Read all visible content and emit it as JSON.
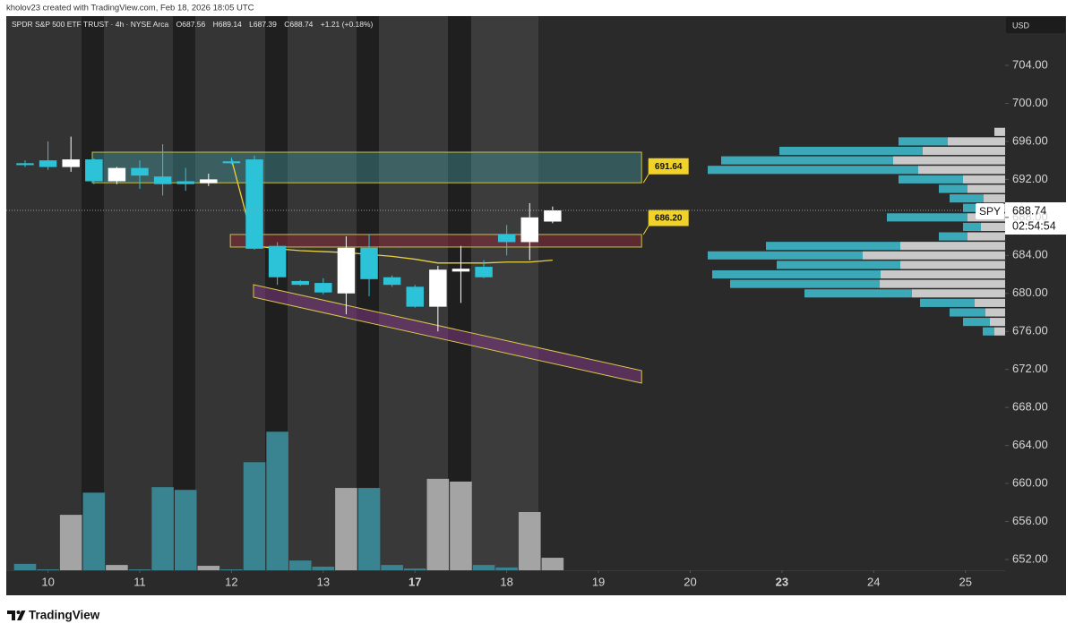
{
  "credit": "kholov23 created with TradingView.com, Feb 18, 2026 18:05 UTC",
  "brand": "TradingView",
  "chart_data": {
    "type": "candlestick",
    "title": "SPDR S&P 500 ETF TRUST · 4h · NYSE Arca",
    "ohlc_labels": [
      "O687.56",
      "H689.14",
      "L687.39",
      "C688.74",
      "+1.21 (+0.18%)"
    ],
    "currency": "USD",
    "symbol": "SPY",
    "countdown": "02:54:54",
    "x": [
      0,
      1,
      2,
      3,
      4,
      5,
      6,
      7,
      8,
      9,
      10,
      11,
      12,
      13,
      14,
      15,
      16,
      17,
      18,
      19,
      20,
      21,
      22,
      23
    ],
    "open": [
      693.7,
      694.0,
      693.3,
      694.1,
      691.8,
      693.2,
      692.3,
      691.8,
      691.6,
      693.9,
      694.1,
      685.0,
      681.3,
      681.1,
      680.0,
      684.8,
      681.7,
      680.7,
      678.6,
      682.3,
      682.8,
      686.2,
      685.4,
      687.56
    ],
    "high": [
      694.0,
      696.0,
      696.5,
      694.2,
      693.3,
      694.0,
      695.7,
      693.2,
      692.6,
      694.3,
      694.5,
      685.4,
      681.4,
      681.6,
      686.0,
      686.2,
      681.9,
      680.9,
      682.9,
      685.0,
      683.5,
      687.2,
      689.5,
      689.14
    ],
    "low": [
      693.3,
      693.0,
      692.8,
      691.5,
      691.5,
      691.0,
      690.3,
      690.8,
      691.3,
      693.6,
      684.6,
      680.9,
      680.8,
      679.9,
      677.8,
      679.7,
      680.7,
      678.5,
      676.0,
      679.0,
      681.6,
      684.0,
      683.5,
      687.39
    ],
    "close": [
      693.5,
      693.3,
      694.1,
      691.8,
      693.2,
      692.4,
      691.5,
      691.5,
      692.0,
      693.7,
      684.7,
      681.7,
      680.9,
      680.1,
      684.8,
      681.5,
      680.9,
      678.6,
      682.5,
      682.6,
      681.7,
      685.4,
      688.0,
      688.74
    ],
    "volume": [
      0.23,
      0.03,
      2.0,
      2.8,
      0.19,
      0.03,
      3.0,
      2.9,
      0.16,
      0.03,
      3.9,
      5.0,
      0.35,
      0.13,
      2.97,
      2.97,
      0.19,
      0.06,
      3.3,
      3.2,
      0.19,
      0.1,
      2.1,
      0.45
    ],
    "up_color": "#ffffff",
    "down_color": "#2cc3d9",
    "volume_up_color": "#a4a4a4",
    "volume_down_color": "#3a8390",
    "xlim": [
      -0.82,
      42.73
    ],
    "xticks": [
      {
        "value": 1,
        "label": "10"
      },
      {
        "value": 5,
        "label": "11"
      },
      {
        "value": 9,
        "label": "12"
      },
      {
        "value": 13,
        "label": "13"
      },
      {
        "value": 17,
        "label": "17",
        "bold": true
      },
      {
        "value": 21,
        "label": "18"
      },
      {
        "value": 25,
        "label": "19"
      },
      {
        "value": 29,
        "label": "20"
      },
      {
        "value": 33,
        "label": "23",
        "bold": true
      },
      {
        "value": 37,
        "label": "24"
      },
      {
        "value": 41,
        "label": "25"
      }
    ],
    "ylim": [
      650.87,
      709.18
    ],
    "yticks": [
      {
        "value": 652,
        "label": "652.00"
      },
      {
        "value": 656,
        "label": "656.00"
      },
      {
        "value": 660,
        "label": "660.00"
      },
      {
        "value": 664,
        "label": "664.00"
      },
      {
        "value": 668,
        "label": "668.00"
      },
      {
        "value": 672,
        "label": "672.00"
      },
      {
        "value": 676,
        "label": "676.00"
      },
      {
        "value": 680,
        "label": "680.00"
      },
      {
        "value": 684,
        "label": "684.00"
      },
      {
        "value": 688,
        "label": "688.00"
      },
      {
        "value": 692,
        "label": "692.00"
      },
      {
        "value": 696,
        "label": "696.00"
      },
      {
        "value": 700,
        "label": "700.00"
      },
      {
        "value": 704,
        "label": "704.00"
      }
    ],
    "volume_ylim": [
      0,
      20
    ],
    "grid": false,
    "zones": [
      {
        "x0": 2.93,
        "x1": 26.88,
        "y0": 691.64,
        "y1": 694.86,
        "label": "691.64",
        "color": "rgba(70,165,172,0.38)"
      },
      {
        "x0": 8.95,
        "x1": 26.88,
        "y0": 686.2,
        "y1": 684.88,
        "label": "686.20",
        "color": "rgba(125,45,55,0.6)"
      }
    ],
    "channel": {
      "x": [
        9.96,
        26.88
      ],
      "top": [
        680.92,
        671.88
      ],
      "bottom": [
        679.6,
        670.56
      ],
      "color": "rgba(125,55,125,0.55)"
    },
    "line": {
      "x": [
        9,
        10,
        11,
        12,
        13,
        14,
        15,
        16,
        17,
        18,
        19,
        20,
        21,
        22,
        23
      ],
      "values": [
        694.1,
        685.0,
        684.7,
        684.5,
        684.4,
        684.3,
        684.1,
        683.9,
        683.6,
        683.2,
        683.2,
        683.2,
        683.3,
        683.3,
        683.5
      ],
      "color": "#e8d23a"
    },
    "volume_profile": {
      "prices": [
        697,
        696,
        695,
        694,
        693,
        692,
        691,
        690,
        689,
        688,
        687,
        686,
        685,
        684,
        683,
        682,
        681,
        680,
        679,
        678,
        677,
        676
      ],
      "up": [
        12,
        64,
        92,
        125,
        97,
        47,
        42,
        24,
        22,
        42,
        27,
        42,
        117,
        159,
        117,
        139,
        140,
        104,
        34,
        22,
        17,
        12
      ],
      "down": [
        0,
        55,
        160,
        192,
        235,
        72,
        32,
        38,
        25,
        90,
        20,
        32,
        150,
        173,
        138,
        188,
        167,
        120,
        61,
        40,
        30,
        13
      ],
      "xlim": [
        0,
        1115
      ],
      "up_color": "#c9c9c9",
      "down_color": "#3ba9b8"
    }
  }
}
